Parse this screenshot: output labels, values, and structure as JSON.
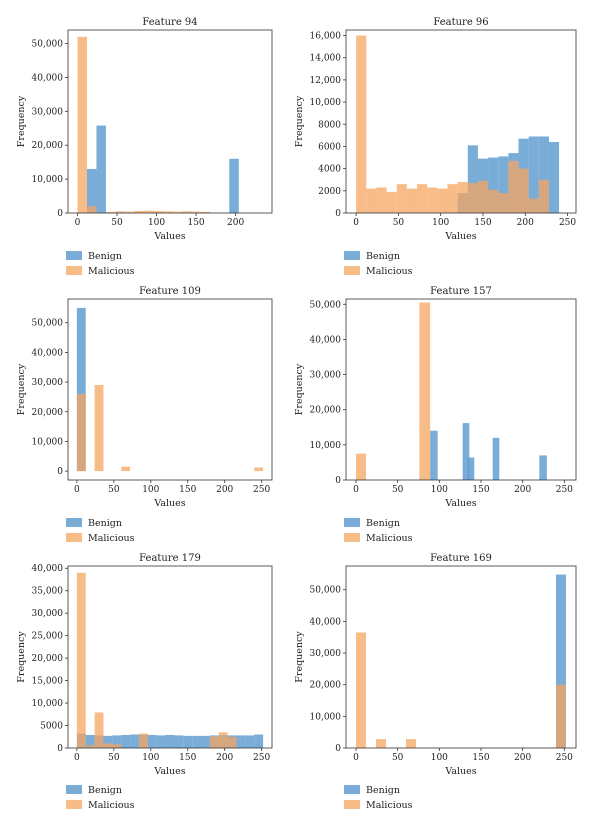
{
  "colors": {
    "benign": "#5b9bd0",
    "malicious": "#f6a561",
    "axis": "#333333",
    "text": "#222222"
  },
  "chart_data": [
    {
      "type": "histogram",
      "title": "Feature 94",
      "xlabel": "Values",
      "ylabel": "Frequency",
      "xlim": [
        -12,
        246
      ],
      "ylim": [
        0,
        54000
      ],
      "xticks": [
        0,
        50,
        100,
        150,
        200
      ],
      "yticks": [
        0,
        10000,
        20000,
        30000,
        40000,
        50000
      ],
      "ytick_labels": [
        "0",
        "10,000",
        "20,000",
        "30,000",
        "40,000",
        "50,000"
      ],
      "legend": [
        "Benign",
        "Malicious"
      ],
      "series": [
        {
          "name": "Benign",
          "bins": [
            [
              12,
              24,
              13000
            ],
            [
              24,
              36,
              25800
            ],
            [
              192,
              204,
              16000
            ]
          ]
        },
        {
          "name": "Malicious",
          "bins": [
            [
              0,
              12,
              52000
            ],
            [
              12,
              24,
              2000
            ],
            [
              36,
              48,
              300
            ],
            [
              48,
              60,
              500
            ],
            [
              60,
              72,
              400
            ],
            [
              72,
              84,
              600
            ],
            [
              84,
              96,
              700
            ],
            [
              96,
              108,
              600
            ],
            [
              108,
              120,
              500
            ],
            [
              120,
              132,
              400
            ],
            [
              132,
              144,
              500
            ],
            [
              144,
              156,
              400
            ],
            [
              156,
              168,
              300
            ]
          ]
        }
      ]
    },
    {
      "type": "histogram",
      "title": "Feature 96",
      "xlabel": "Values",
      "ylabel": "Frequency",
      "xlim": [
        -12,
        260
      ],
      "ylim": [
        0,
        16500
      ],
      "xticks": [
        0,
        50,
        100,
        150,
        200,
        250
      ],
      "yticks": [
        0,
        2000,
        4000,
        6000,
        8000,
        10000,
        12000,
        14000,
        16000
      ],
      "ytick_labels": [
        "0",
        "2000",
        "4000",
        "6000",
        "8000",
        "10,000",
        "12,000",
        "14,000",
        "16,000"
      ],
      "legend": [
        "Benign",
        "Malicious"
      ],
      "series": [
        {
          "name": "Benign",
          "bins": [
            [
              120,
              132,
              1800
            ],
            [
              132,
              144,
              6100
            ],
            [
              144,
              156,
              4900
            ],
            [
              156,
              168,
              5000
            ],
            [
              168,
              180,
              5100
            ],
            [
              180,
              192,
              5400
            ],
            [
              192,
              204,
              6700
            ],
            [
              204,
              216,
              6900
            ],
            [
              216,
              228,
              6900
            ],
            [
              228,
              240,
              6400
            ]
          ]
        },
        {
          "name": "Malicious",
          "bins": [
            [
              0,
              12,
              16000
            ],
            [
              12,
              24,
              2200
            ],
            [
              24,
              36,
              2300
            ],
            [
              36,
              48,
              1900
            ],
            [
              48,
              60,
              2600
            ],
            [
              60,
              72,
              2200
            ],
            [
              72,
              84,
              2600
            ],
            [
              84,
              96,
              2300
            ],
            [
              96,
              108,
              2200
            ],
            [
              108,
              120,
              2600
            ],
            [
              120,
              132,
              2800
            ],
            [
              132,
              144,
              2700
            ],
            [
              144,
              156,
              2900
            ],
            [
              156,
              168,
              2100
            ],
            [
              168,
              180,
              1800
            ],
            [
              180,
              192,
              4700
            ],
            [
              192,
              204,
              4000
            ],
            [
              204,
              216,
              1300
            ],
            [
              216,
              228,
              3000
            ]
          ]
        }
      ]
    },
    {
      "type": "histogram",
      "title": "Feature 109",
      "xlabel": "Values",
      "ylabel": "Frequency",
      "xlim": [
        -12,
        264
      ],
      "ylim": [
        -3000,
        58000
      ],
      "xticks": [
        0,
        50,
        100,
        150,
        200,
        250
      ],
      "yticks": [
        0,
        10000,
        20000,
        30000,
        40000,
        50000
      ],
      "ytick_labels": [
        "0",
        "10,000",
        "20,000",
        "30,000",
        "40,000",
        "50,000"
      ],
      "legend": [
        "Benign",
        "Malicious"
      ],
      "series": [
        {
          "name": "Benign",
          "bins": [
            [
              0,
              12,
              55000
            ]
          ]
        },
        {
          "name": "Malicious",
          "bins": [
            [
              0,
              12,
              26000
            ],
            [
              24,
              36,
              29000
            ],
            [
              60,
              72,
              1500
            ],
            [
              240,
              252,
              1200
            ]
          ]
        }
      ]
    },
    {
      "type": "histogram",
      "title": "Feature 157",
      "xlabel": "Values",
      "ylabel": "Frequency",
      "xlim": [
        -12,
        264
      ],
      "ylim": [
        0,
        51500
      ],
      "xticks": [
        0,
        50,
        100,
        150,
        200,
        250
      ],
      "yticks": [
        0,
        10000,
        20000,
        30000,
        40000,
        50000
      ],
      "ytick_labels": [
        "0",
        "10,000",
        "20,000",
        "30,000",
        "40,000",
        "50,000"
      ],
      "legend": [
        "Benign",
        "Malicious"
      ],
      "series": [
        {
          "name": "Benign",
          "bins": [
            [
              89,
              98,
              14000
            ],
            [
              128,
              136,
              16200
            ],
            [
              134,
              142,
              6400
            ],
            [
              164,
              172,
              12000
            ],
            [
              220,
              229,
              7000
            ]
          ]
        },
        {
          "name": "Malicious",
          "bins": [
            [
              0,
              12,
              7500
            ],
            [
              76,
              89,
              50500
            ]
          ]
        }
      ]
    },
    {
      "type": "histogram",
      "title": "Feature 179",
      "xlabel": "Values",
      "ylabel": "Frequency",
      "xlim": [
        -12,
        264
      ],
      "ylim": [
        0,
        40500
      ],
      "xticks": [
        0,
        50,
        100,
        150,
        200,
        250
      ],
      "yticks": [
        0,
        5000,
        10000,
        15000,
        20000,
        25000,
        30000,
        35000,
        40000
      ],
      "ytick_labels": [
        "0",
        "5000",
        "10,000",
        "15,000",
        "20,000",
        "25,000",
        "30,000",
        "35,000",
        "40,000"
      ],
      "legend": [
        "Benign",
        "Malicious"
      ],
      "series": [
        {
          "name": "Benign",
          "bins": [
            [
              0,
              12,
              3200
            ],
            [
              12,
              24,
              2900
            ],
            [
              24,
              36,
              2800
            ],
            [
              36,
              48,
              2700
            ],
            [
              48,
              60,
              2800
            ],
            [
              60,
              72,
              2900
            ],
            [
              72,
              84,
              3000
            ],
            [
              84,
              96,
              3000
            ],
            [
              96,
              108,
              2900
            ],
            [
              108,
              120,
              2800
            ],
            [
              120,
              132,
              2900
            ],
            [
              132,
              144,
              2800
            ],
            [
              144,
              156,
              2700
            ],
            [
              156,
              168,
              2700
            ],
            [
              168,
              180,
              2700
            ],
            [
              180,
              192,
              2800
            ],
            [
              192,
              204,
              2900
            ],
            [
              204,
              216,
              2800
            ],
            [
              216,
              228,
              2800
            ],
            [
              228,
              240,
              2800
            ],
            [
              240,
              252,
              3000
            ]
          ]
        },
        {
          "name": "Malicious",
          "bins": [
            [
              0,
              12,
              39000
            ],
            [
              12,
              24,
              600
            ],
            [
              24,
              36,
              7900
            ],
            [
              36,
              48,
              1000
            ],
            [
              48,
              60,
              800
            ],
            [
              84,
              96,
              3200
            ],
            [
              180,
              192,
              2600
            ],
            [
              192,
              204,
              3500
            ],
            [
              204,
              216,
              2500
            ]
          ]
        }
      ]
    },
    {
      "type": "histogram",
      "title": "Feature 169",
      "xlabel": "Values",
      "ylabel": "Frequency",
      "xlim": [
        -12,
        264
      ],
      "ylim": [
        0,
        57500
      ],
      "xticks": [
        0,
        50,
        100,
        150,
        200,
        250
      ],
      "yticks": [
        0,
        10000,
        20000,
        30000,
        40000,
        50000
      ],
      "ytick_labels": [
        "0",
        "10,000",
        "20,000",
        "30,000",
        "40,000",
        "50,000"
      ],
      "legend": [
        "Benign",
        "Malicious"
      ],
      "series": [
        {
          "name": "Benign",
          "bins": [
            [
              240,
              252,
              54800
            ]
          ]
        },
        {
          "name": "Malicious",
          "bins": [
            [
              0,
              12,
              36500
            ],
            [
              24,
              36,
              2800
            ],
            [
              60,
              72,
              2800
            ],
            [
              240,
              252,
              20000
            ]
          ]
        }
      ]
    }
  ]
}
